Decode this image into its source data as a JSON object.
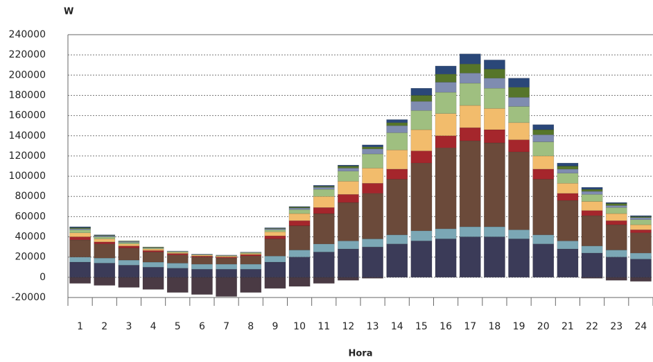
{
  "chart_data": {
    "type": "stacked_bar",
    "title": "W",
    "x_label": "Hora",
    "categories": [
      "1",
      "2",
      "3",
      "4",
      "5",
      "6",
      "7",
      "8",
      "9",
      "10",
      "11",
      "12",
      "13",
      "14",
      "15",
      "16",
      "17",
      "18",
      "19",
      "20",
      "21",
      "22",
      "23",
      "24"
    ],
    "series": [
      {
        "color": "#4a3a44",
        "values": [
          -6000,
          -8000,
          -10000,
          -12000,
          -15000,
          -17000,
          -19000,
          -15000,
          -11000,
          -9000,
          -6000,
          -3000,
          -1000,
          0,
          0,
          0,
          0,
          0,
          0,
          0,
          0,
          -1000,
          -3000,
          -4000
        ]
      },
      {
        "color": "#3b3b58",
        "values": [
          15000,
          14000,
          12000,
          10000,
          9000,
          8000,
          8000,
          8000,
          15000,
          20000,
          25000,
          28000,
          30000,
          33000,
          36000,
          38000,
          40000,
          40000,
          38000,
          33000,
          28000,
          24000,
          20000,
          18000
        ]
      },
      {
        "color": "#7ba7b5",
        "values": [
          5000,
          5000,
          5000,
          5000,
          5000,
          5000,
          5000,
          5000,
          6000,
          7000,
          8000,
          8000,
          8000,
          9000,
          10000,
          10000,
          10000,
          10000,
          9000,
          9000,
          8000,
          7000,
          7000,
          6000
        ]
      },
      {
        "color": "#6b4a3a",
        "values": [
          17000,
          14000,
          12000,
          10000,
          8000,
          7000,
          6000,
          8000,
          17000,
          24000,
          30000,
          38000,
          45000,
          55000,
          67000,
          80000,
          85000,
          83000,
          77000,
          55000,
          40000,
          30000,
          25000,
          20000
        ]
      },
      {
        "color": "#a5262c",
        "values": [
          3000,
          2000,
          2000,
          1500,
          1500,
          1000,
          1000,
          1500,
          3000,
          5000,
          6000,
          8000,
          10000,
          10000,
          12000,
          12000,
          13000,
          13000,
          12000,
          10000,
          7000,
          5000,
          4000,
          3000
        ]
      },
      {
        "color": "#f2bc6c",
        "values": [
          4000,
          3000,
          2000,
          1500,
          1000,
          1000,
          1000,
          1000,
          4000,
          7000,
          11000,
          13000,
          15000,
          19000,
          21000,
          22000,
          22000,
          21000,
          17000,
          13000,
          10000,
          9000,
          7000,
          5000
        ]
      },
      {
        "color": "#9fbf80",
        "values": [
          3000,
          2000,
          1500,
          1000,
          1000,
          500,
          500,
          1000,
          2000,
          4000,
          7000,
          10000,
          14000,
          17000,
          19000,
          21000,
          22000,
          20000,
          16000,
          14000,
          10000,
          7000,
          6000,
          5000
        ]
      },
      {
        "color": "#7f8cb0",
        "values": [
          1000,
          1000,
          1000,
          500,
          500,
          500,
          500,
          500,
          1000,
          1500,
          2000,
          3000,
          5000,
          7000,
          9000,
          10000,
          10000,
          10000,
          9000,
          7000,
          4000,
          3000,
          2000,
          2000
        ]
      },
      {
        "color": "#56752a",
        "values": [
          1000,
          500,
          500,
          500,
          0,
          0,
          0,
          0,
          500,
          1000,
          1000,
          2000,
          2000,
          3000,
          6000,
          8000,
          9000,
          9000,
          10000,
          5000,
          3000,
          2000,
          2000,
          1000
        ]
      },
      {
        "color": "#2a4778",
        "values": [
          1000,
          500,
          0,
          0,
          0,
          0,
          0,
          0,
          500,
          500,
          1000,
          1000,
          2000,
          3000,
          7000,
          8000,
          10000,
          9000,
          9000,
          5000,
          3000,
          2000,
          1000,
          1000
        ]
      }
    ],
    "ylim": [
      -20000,
      240000
    ],
    "yticks": [
      -20000,
      0,
      20000,
      40000,
      60000,
      80000,
      100000,
      120000,
      140000,
      160000,
      180000,
      200000,
      220000,
      240000
    ],
    "grid": true
  }
}
